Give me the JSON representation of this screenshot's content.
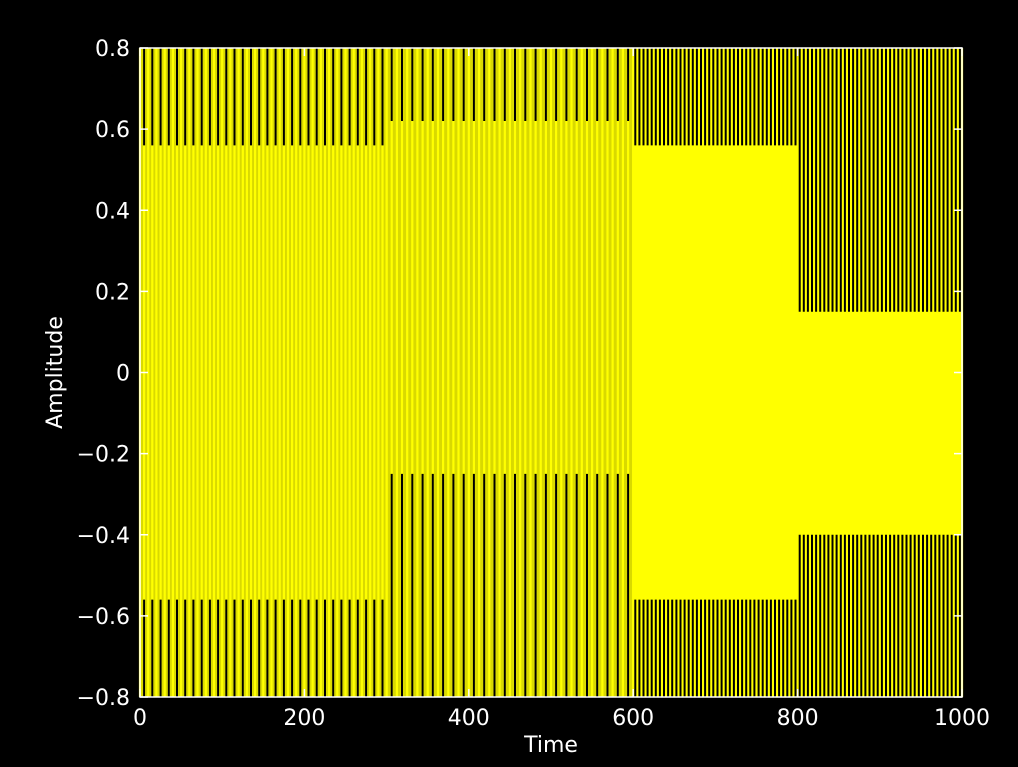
{
  "chart_data": {
    "type": "line",
    "title": "",
    "xlabel": "Time",
    "ylabel": "Amplitude",
    "xlim": [
      0,
      1000
    ],
    "ylim": [
      -0.8,
      0.8
    ],
    "xticks": [
      0,
      200,
      400,
      600,
      800,
      1000
    ],
    "yticks": [
      -0.8,
      -0.6,
      -0.4,
      -0.2,
      0,
      0.2,
      0.4,
      0.6,
      0.8
    ],
    "xtick_labels": [
      "0",
      "200",
      "400",
      "600",
      "800",
      "1000"
    ],
    "ytick_labels": [
      "−0.8",
      "−0.6",
      "−0.4",
      "−0.2",
      "0",
      "0.2",
      "0.4",
      "0.6",
      "0.8"
    ],
    "grid": false,
    "colors": {
      "background": "#000000",
      "axes": "#ffffff",
      "line": "#ffff00"
    },
    "series": [
      {
        "segments": [
          {
            "x_range": [
              0,
              300
            ],
            "pattern": "dense oscillation",
            "levels": [
              -0.8,
              -0.56,
              -0.35,
              0.32,
              0.56,
              0.8
            ],
            "pulse_spacing": 10
          },
          {
            "x_range": [
              300,
              600
            ],
            "pattern": "dense oscillation",
            "levels": [
              -0.8,
              -0.25,
              0.62,
              0.8
            ],
            "pulse_spacing": 12.5
          },
          {
            "x_range": [
              600,
              800
            ],
            "pattern": "dense oscillation",
            "levels": [
              -0.8,
              -0.56,
              0.56,
              0.8
            ],
            "pulse_spacing": 5
          },
          {
            "x_range": [
              800,
              1000
            ],
            "pattern": "dense oscillation",
            "levels": [
              -0.8,
              -0.4,
              0.15,
              0.8
            ],
            "pulse_spacing": 5
          }
        ]
      }
    ]
  }
}
